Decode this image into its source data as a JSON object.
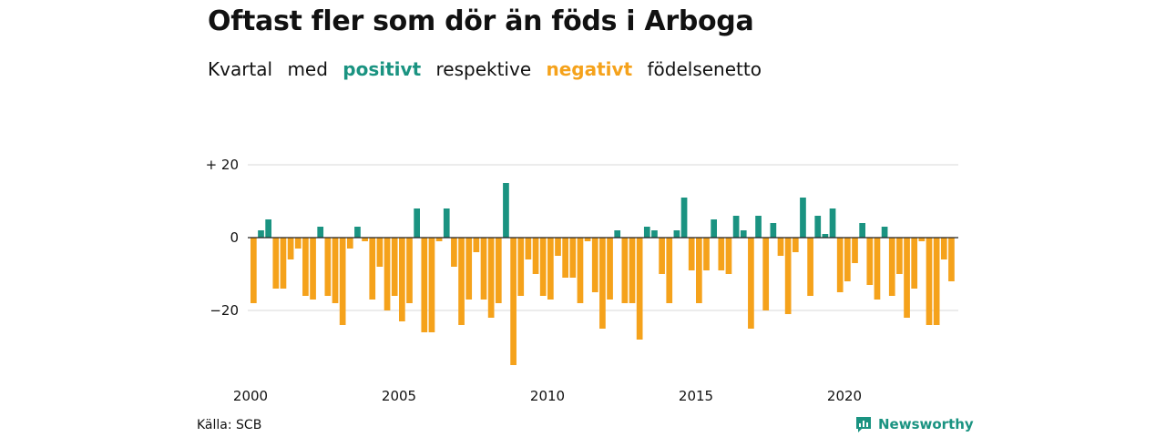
{
  "header": {
    "title": "Oftast fler som dör än föds i Arboga",
    "subtitle_words": [
      "Kvartal",
      "med",
      "positivt",
      "respektive",
      "negativt",
      "födelsenetto"
    ]
  },
  "footer": {
    "source": "Källa: SCB",
    "brand": "Newsworthy"
  },
  "colors": {
    "positive": "#1a9381",
    "negative": "#f5a21b",
    "grid": "#d9d9d9"
  },
  "chart_data": {
    "type": "bar",
    "title": "Oftast fler som dör än föds i Arboga",
    "subtitle": "Kvartal med positivt respektive negativt födelsenetto",
    "x_start": 2000,
    "x_ticks": [
      "2000",
      "2005",
      "2010",
      "2015",
      "2020"
    ],
    "y_ticks": [
      {
        "value": 20,
        "label": "+ 20"
      },
      {
        "value": 0,
        "label": "0"
      },
      {
        "value": -20,
        "label": "−20"
      }
    ],
    "ylim": [
      -36,
      20
    ],
    "grid": true,
    "values": [
      -18,
      2,
      5,
      -14,
      -14,
      -6,
      -3,
      -16,
      -17,
      3,
      -16,
      -18,
      -24,
      -3,
      3,
      -1,
      -17,
      -8,
      -20,
      -16,
      -23,
      -18,
      8,
      -26,
      -26,
      -1,
      8,
      -8,
      -24,
      -17,
      -4,
      -17,
      -22,
      -18,
      15,
      -35,
      -16,
      -6,
      -10,
      -16,
      -17,
      -5,
      -11,
      -11,
      -18,
      -1,
      -15,
      -25,
      -17,
      2,
      -18,
      -18,
      -28,
      3,
      2,
      -10,
      -18,
      2,
      11,
      -9,
      -18,
      -9,
      5,
      -9,
      -10,
      6,
      2,
      -25,
      6,
      -20,
      4,
      -5,
      -21,
      -4,
      11,
      -16,
      6,
      1,
      8,
      -15,
      -12,
      -7,
      4,
      -13,
      -17,
      3,
      -16,
      -10,
      -22,
      -14,
      -1,
      -24,
      -24,
      -6,
      -12
    ]
  }
}
